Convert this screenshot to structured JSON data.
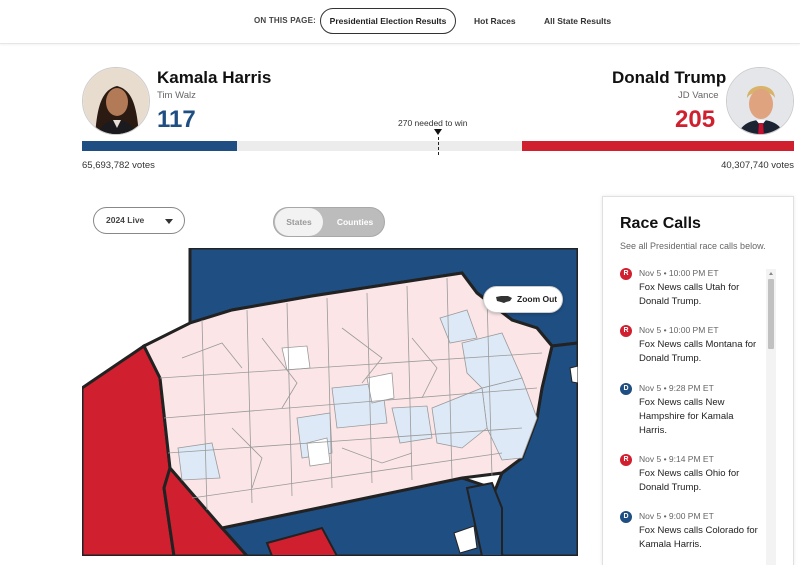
{
  "nav": {
    "label": "ON THIS PAGE:",
    "active": "Presidential Election Results",
    "links": [
      "Hot Races",
      "All State Results"
    ]
  },
  "candidates": {
    "dem": {
      "name": "Kamala Harris",
      "vp": "Tim Walz",
      "electoral_votes": "117",
      "votes": "65,693,782 votes",
      "color": "#1f4e82"
    },
    "rep": {
      "name": "Donald Trump",
      "vp": "JD Vance",
      "electoral_votes": "205",
      "votes": "40,307,740 votes",
      "color": "#d0202f"
    }
  },
  "needed_to_win": "270 needed to win",
  "controls": {
    "year_select": "2024 Live",
    "toggle": [
      "States",
      "Counties"
    ],
    "active_toggle": "Counties"
  },
  "map": {
    "zoom_label": "Zoom Out",
    "colors": {
      "dem_state": "#1f4e82",
      "rep_state": "#d0202f",
      "dem_county": "#dde9f6",
      "rep_county": "#fbe5e7",
      "outline": "#222222"
    }
  },
  "race_calls": {
    "title": "Race Calls",
    "subtitle": "See all Presidential race calls below.",
    "calls": [
      {
        "party": "R",
        "time": "Nov 5 • 10:00 PM ET",
        "text": "Fox News calls Utah for Donald Trump."
      },
      {
        "party": "R",
        "time": "Nov 5 • 10:00 PM ET",
        "text": "Fox News calls Montana for Donald Trump."
      },
      {
        "party": "D",
        "time": "Nov 5 • 9:28 PM ET",
        "text": "Fox News calls New Hampshire for Kamala Harris."
      },
      {
        "party": "R",
        "time": "Nov 5 • 9:14 PM ET",
        "text": "Fox News calls Ohio for Donald Trump."
      },
      {
        "party": "D",
        "time": "Nov 5 • 9:00 PM ET",
        "text": "Fox News calls Colorado for Kamala Harris."
      }
    ]
  }
}
